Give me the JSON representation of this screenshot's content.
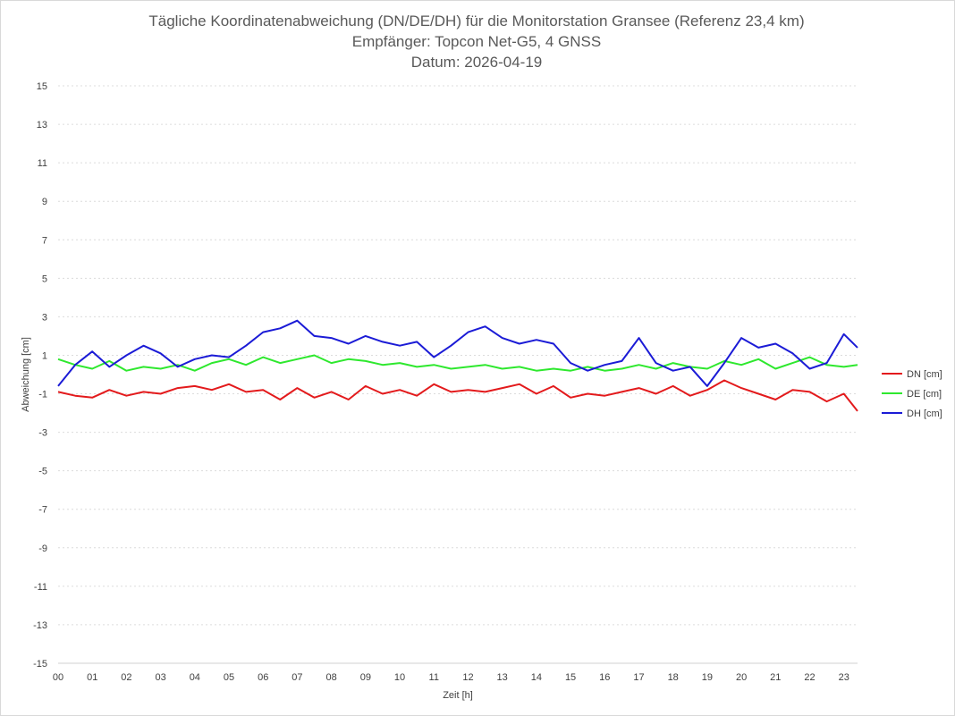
{
  "chart_data": {
    "type": "line",
    "title": [
      "Tägliche Koordinatenabweichung (DN/DE/DH) für die Monitorstation Gransee (Referenz 23,4 km)",
      "Empfänger: Topcon Net-G5, 4 GNSS",
      "Datum: 2026-04-19"
    ],
    "xlabel": "Zeit [h]",
    "ylabel": "Abweichung [cm]",
    "xlim": [
      0,
      23.4
    ],
    "ylim": [
      -15,
      15
    ],
    "x_ticks": [
      "00",
      "01",
      "02",
      "03",
      "04",
      "05",
      "06",
      "07",
      "08",
      "09",
      "10",
      "11",
      "12",
      "13",
      "14",
      "15",
      "16",
      "17",
      "18",
      "19",
      "20",
      "21",
      "22",
      "23"
    ],
    "y_ticks": [
      15,
      13,
      11,
      9,
      7,
      5,
      3,
      1,
      -1,
      -3,
      -5,
      -7,
      -9,
      -11,
      -13,
      -15
    ],
    "grid": "horizontal dotted",
    "legend_position": "right",
    "series": [
      {
        "name": "DN [cm]",
        "color": "#e31a1c",
        "x": [
          0,
          0.5,
          1,
          1.5,
          2,
          2.5,
          3,
          3.5,
          4,
          4.5,
          5,
          5.5,
          6,
          6.5,
          7,
          7.5,
          8,
          8.5,
          9,
          9.5,
          10,
          10.5,
          11,
          11.5,
          12,
          12.5,
          13,
          13.5,
          14,
          14.5,
          15,
          15.5,
          16,
          16.5,
          17,
          17.5,
          18,
          18.5,
          19,
          19.5,
          20,
          20.5,
          21,
          21.5,
          22,
          22.5,
          23,
          23.4
        ],
        "y": [
          -0.9,
          -1.1,
          -1.2,
          -0.8,
          -1.1,
          -0.9,
          -1.0,
          -0.7,
          -0.6,
          -0.8,
          -0.5,
          -0.9,
          -0.8,
          -1.3,
          -0.7,
          -1.2,
          -0.9,
          -1.3,
          -0.6,
          -1.0,
          -0.8,
          -1.1,
          -0.5,
          -0.9,
          -0.8,
          -0.9,
          -0.7,
          -0.5,
          -1.0,
          -0.6,
          -1.2,
          -1.0,
          -1.1,
          -0.9,
          -0.7,
          -1.0,
          -0.6,
          -1.1,
          -0.8,
          -0.3,
          -0.7,
          -1.0,
          -1.3,
          -0.8,
          -0.9,
          -1.4,
          -1.0,
          -1.9
        ]
      },
      {
        "name": "DE [cm]",
        "color": "#2ee82e",
        "x": [
          0,
          0.5,
          1,
          1.5,
          2,
          2.5,
          3,
          3.5,
          4,
          4.5,
          5,
          5.5,
          6,
          6.5,
          7,
          7.5,
          8,
          8.5,
          9,
          9.5,
          10,
          10.5,
          11,
          11.5,
          12,
          12.5,
          13,
          13.5,
          14,
          14.5,
          15,
          15.5,
          16,
          16.5,
          17,
          17.5,
          18,
          18.5,
          19,
          19.5,
          20,
          20.5,
          21,
          21.5,
          22,
          22.5,
          23,
          23.4
        ],
        "y": [
          0.8,
          0.5,
          0.3,
          0.7,
          0.2,
          0.4,
          0.3,
          0.5,
          0.2,
          0.6,
          0.8,
          0.5,
          0.9,
          0.6,
          0.8,
          1.0,
          0.6,
          0.8,
          0.7,
          0.5,
          0.6,
          0.4,
          0.5,
          0.3,
          0.4,
          0.5,
          0.3,
          0.4,
          0.2,
          0.3,
          0.2,
          0.4,
          0.2,
          0.3,
          0.5,
          0.3,
          0.6,
          0.4,
          0.3,
          0.7,
          0.5,
          0.8,
          0.3,
          0.6,
          0.9,
          0.5,
          0.4,
          0.5
        ]
      },
      {
        "name": "DH [cm]",
        "color": "#1b1bd6",
        "x": [
          0,
          0.5,
          1,
          1.5,
          2,
          2.5,
          3,
          3.5,
          4,
          4.5,
          5,
          5.5,
          6,
          6.5,
          7,
          7.5,
          8,
          8.5,
          9,
          9.5,
          10,
          10.5,
          11,
          11.5,
          12,
          12.5,
          13,
          13.5,
          14,
          14.5,
          15,
          15.5,
          16,
          16.5,
          17,
          17.5,
          18,
          18.5,
          19,
          19.5,
          20,
          20.5,
          21,
          21.5,
          22,
          22.5,
          23,
          23.4
        ],
        "y": [
          -0.6,
          0.5,
          1.2,
          0.4,
          1.0,
          1.5,
          1.1,
          0.4,
          0.8,
          1.0,
          0.9,
          1.5,
          2.2,
          2.4,
          2.8,
          2.0,
          1.9,
          1.6,
          2.0,
          1.7,
          1.5,
          1.7,
          0.9,
          1.5,
          2.2,
          2.5,
          1.9,
          1.6,
          1.8,
          1.6,
          0.6,
          0.2,
          0.5,
          0.7,
          1.9,
          0.6,
          0.2,
          0.4,
          -0.6,
          0.6,
          1.9,
          1.4,
          1.6,
          1.1,
          0.3,
          0.6,
          2.1,
          1.4
        ]
      }
    ]
  }
}
